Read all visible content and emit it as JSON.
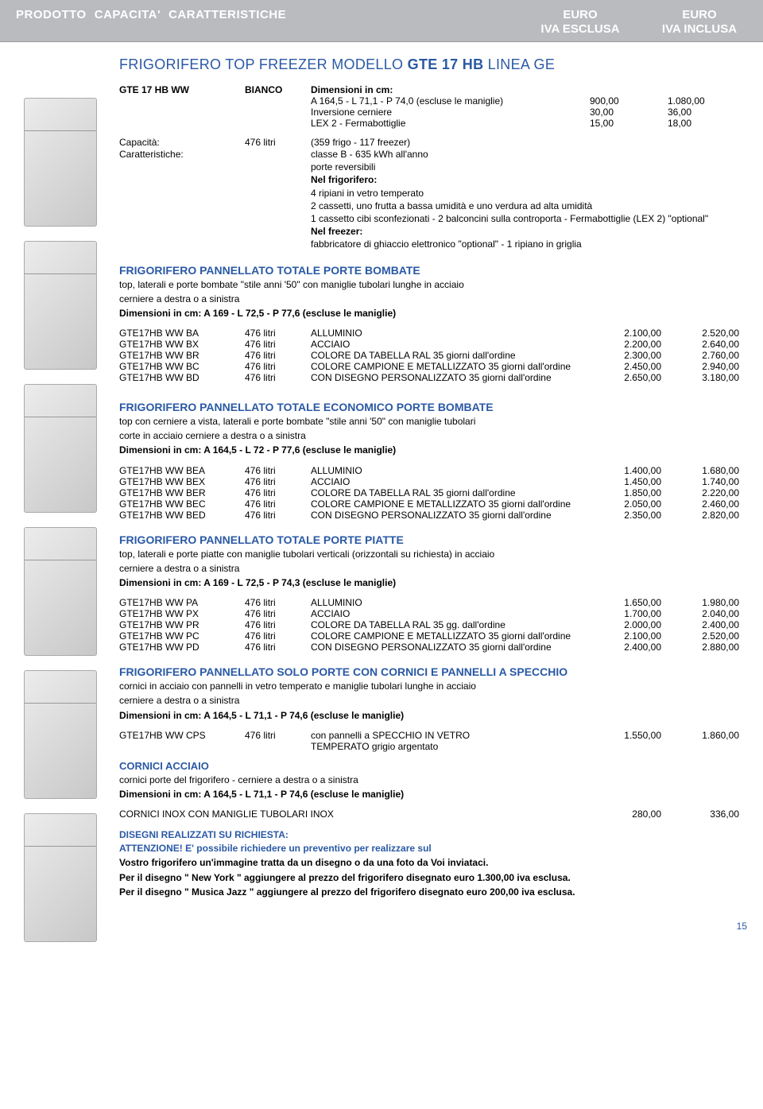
{
  "header": {
    "col1": "PRODOTTO",
    "col2": "CAPACITA'",
    "col3": "CARATTERISTICHE",
    "euro_ex": "EURO",
    "iva_ex": "IVA ESCLUSA",
    "euro_in": "EURO",
    "iva_in": "IVA INCLUSA"
  },
  "main": {
    "title_pre": "FRIGORIFERO TOP FREEZER MODELLO ",
    "title_bold": "GTE 17 HB",
    "title_post": " LINEA GE",
    "head_row": {
      "model": "GTE 17 HB WW",
      "color": "BIANCO",
      "dim_lbl": "Dimensioni in cm:",
      "dim": "A 164,5 - L 71,1 - P 74,0 (escluse le maniglie)",
      "p1a": "900,00",
      "p1b": "1.080,00",
      "r2": "Inversione cerniere",
      "p2a": "30,00",
      "p2b": "36,00",
      "r3": "LEX 2 - Fermabottiglie",
      "p3a": "15,00",
      "p3b": "18,00"
    },
    "spec": {
      "cap_lbl": "Capacità:",
      "cap_val": "476 litri",
      "spec_desc": "(359 frigo - 117 freezer)",
      "car_lbl": "Caratteristiche:",
      "lines": [
        "classe B - 635 kWh all'anno",
        "porte reversibili",
        "Nel frigorifero:",
        "4 ripiani in vetro temperato",
        "2 cassetti, uno frutta a bassa umidità e uno verdura ad alta umidità",
        "1 cassetto cibi sconfezionati - 2 balconcini sulla controporta - Fermabottiglie (LEX 2) \"optional\"",
        "Nel freezer:",
        "fabbricatore di ghiaccio elettronico \"optional\" - 1 ripiano in griglia"
      ]
    }
  },
  "sections": [
    {
      "title": "FRIGORIFERO PANNELLATO TOTALE PORTE BOMBATE",
      "descs": [
        "top, laterali e porte bombate \"stile anni '50\" con maniglie tubolari lunghe in acciaio",
        "cerniere a destra o a sinistra"
      ],
      "dim": "Dimensioni in cm: A 169  - L 72,5 - P 77,6 (escluse le maniglie)",
      "rows": [
        {
          "m": "GTE17HB WW BA",
          "l": "476 litri",
          "d": "ALLUMINIO",
          "a": "2.100,00",
          "b": "2.520,00"
        },
        {
          "m": "GTE17HB WW BX",
          "l": "476 litri",
          "d": "ACCIAIO",
          "a": "2.200,00",
          "b": "2.640,00"
        },
        {
          "m": "GTE17HB WW BR",
          "l": "476 litri",
          "d": "COLORE DA TABELLA RAL 35 giorni dall'ordine",
          "a": "2.300,00",
          "b": "2.760,00"
        },
        {
          "m": "GTE17HB WW BC",
          "l": "476 litri",
          "d": "COLORE CAMPIONE E METALLIZZATO 35 giorni dall'ordine",
          "a": "2.450,00",
          "b": "2.940,00"
        },
        {
          "m": "GTE17HB WW BD",
          "l": "476 litri",
          "d": "CON DISEGNO PERSONALIZZATO 35 giorni dall'ordine",
          "a": "2.650,00",
          "b": "3.180,00"
        }
      ]
    },
    {
      "title": "FRIGORIFERO PANNELLATO TOTALE ECONOMICO PORTE BOMBATE",
      "descs": [
        "top con cerniere a vista, laterali e porte bombate \"stile anni '50\" con maniglie tubolari",
        "corte in acciaio cerniere a destra o a sinistra"
      ],
      "dim": "Dimensioni in cm: A 164,5 - L 72 - P 77,6 (escluse le maniglie)",
      "rows": [
        {
          "m": "GTE17HB WW BEA",
          "l": "476 litri",
          "d": "ALLUMINIO",
          "a": "1.400,00",
          "b": "1.680,00"
        },
        {
          "m": "GTE17HB WW BEX",
          "l": "476 litri",
          "d": "ACCIAIO",
          "a": "1.450,00",
          "b": "1.740,00"
        },
        {
          "m": "GTE17HB WW BER",
          "l": "476 litri",
          "d": "COLORE DA TABELLA RAL 35 giorni dall'ordine",
          "a": "1.850,00",
          "b": "2.220,00"
        },
        {
          "m": "GTE17HB WW BEC",
          "l": "476 litri",
          "d": "COLORE CAMPIONE E METALLIZZATO 35 giorni dall'ordine",
          "a": "2.050,00",
          "b": "2.460,00"
        },
        {
          "m": "GTE17HB WW BED",
          "l": "476 litri",
          "d": "CON DISEGNO PERSONALIZZATO 35 giorni dall'ordine",
          "a": "2.350,00",
          "b": "2.820,00"
        }
      ]
    },
    {
      "title": "FRIGORIFERO PANNELLATO TOTALE PORTE PIATTE",
      "descs": [
        "top, laterali e porte piatte con maniglie tubolari verticali (orizzontali su richiesta)  in acciaio",
        "cerniere a destra o a sinistra"
      ],
      "dim": "Dimensioni in cm: A 169 - L 72,5 - P 74,3 (escluse le maniglie)",
      "rows": [
        {
          "m": "GTE17HB WW PA",
          "l": "476 litri",
          "d": "ALLUMINIO",
          "a": "1.650,00",
          "b": "1.980,00"
        },
        {
          "m": "GTE17HB WW PX",
          "l": "476 litri",
          "d": "ACCIAIO",
          "a": "1.700,00",
          "b": "2.040,00"
        },
        {
          "m": "GTE17HB WW PR",
          "l": "476 litri",
          "d": "COLORE DA TABELLA RAL 35 gg. dall'ordine",
          "a": "2.000,00",
          "b": "2.400,00"
        },
        {
          "m": "GTE17HB WW PC",
          "l": "476 litri",
          "d": "COLORE CAMPIONE E METALLIZZATO 35 giorni dall'ordine",
          "a": "2.100,00",
          "b": "2.520,00"
        },
        {
          "m": "GTE17HB WW PD",
          "l": "476 litri",
          "d": "CON DISEGNO PERSONALIZZATO 35 giorni dall'ordine",
          "a": "2.400,00",
          "b": "2.880,00"
        }
      ]
    },
    {
      "title": "FRIGORIFERO PANNELLATO SOLO PORTE CON CORNICI E PANNELLI A SPECCHIO",
      "descs": [
        "cornici in acciaio con pannelli in vetro temperato e maniglie tubolari lunghe in acciaio",
        "cerniere a destra o a sinistra"
      ],
      "dim": "Dimensioni in cm: A 164,5 - L 71,1 - P 74,6 (escluse le maniglie)",
      "rows": [
        {
          "m": "GTE17HB WW CPS",
          "l": "476 litri",
          "d": "con pannelli a SPECCHIO IN VETRO",
          "a": "1.550,00",
          "b": "1.860,00"
        }
      ],
      "extra_row": "TEMPERATO grigio argentato"
    }
  ],
  "cornici": {
    "title": "CORNICI ACCIAIO",
    "descs": [
      "cornici porte del  frigorifero - cerniere a destra o a sinistra"
    ],
    "dim": "Dimensioni in cm: A 164,5 - L 71,1 - P 74,6 (escluse le maniglie)",
    "row": {
      "m": "CORNICI INOX CON MANIGLIE TUBOLARI INOX",
      "a": "280,00",
      "b": "336,00"
    }
  },
  "footer": {
    "title": "DISEGNI REALIZZATI SU RICHIESTA:",
    "att": "ATTENZIONE! E' possibile richiedere un preventivo per realizzare sul",
    "b1": "Vostro frigorifero un'immagine tratta da un disegno o da una foto da Voi inviataci.",
    "b2": "Per il disegno \" New York \" aggiungere al prezzo del frigorifero disegnato euro 1.300,00 iva esclusa.",
    "b3": "Per il disegno \" Musica Jazz \" aggiungere al prezzo del frigorifero disegnato euro 200,00 iva esclusa."
  },
  "page": "15",
  "line_bold_idx": [
    2,
    6
  ]
}
